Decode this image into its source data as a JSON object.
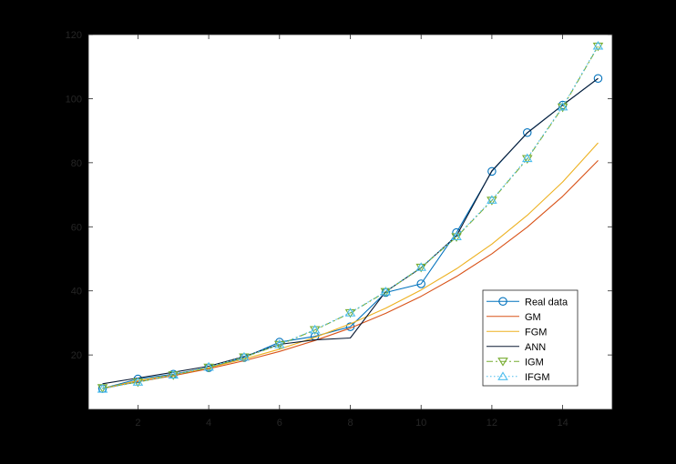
{
  "chart_data": {
    "type": "line",
    "title": "",
    "xlabel": "",
    "ylabel": "",
    "xlim": [
      0.6,
      15.4
    ],
    "ylim": [
      3,
      120
    ],
    "xticks": [
      2,
      4,
      6,
      8,
      10,
      12,
      14
    ],
    "yticks": [
      20,
      40,
      60,
      80,
      100,
      120
    ],
    "grid": false,
    "legend_position": "lower-right",
    "x": [
      1,
      2,
      3,
      4,
      5,
      6,
      7,
      8,
      9,
      10,
      11,
      12,
      13,
      14,
      15
    ],
    "series": [
      {
        "name": "Real data",
        "color": "#0072bd",
        "line": "solid",
        "marker": "circle",
        "values": [
          9.5,
          12.5,
          14,
          16,
          19.2,
          24,
          25.8,
          28.8,
          39.5,
          42.2,
          58.2,
          77.3,
          89.4,
          98,
          106.3
        ]
      },
      {
        "name": "GM",
        "color": "#d95319",
        "line": "solid",
        "marker": "none",
        "values": [
          9.5,
          11.7,
          13.5,
          15.7,
          18.2,
          21.1,
          24.5,
          28.4,
          33,
          38.3,
          44.5,
          51.6,
          59.9,
          69.5,
          80.7
        ]
      },
      {
        "name": "FGM",
        "color": "#edb120",
        "line": "solid",
        "marker": "none",
        "values": [
          9.5,
          12,
          13.8,
          16,
          18.7,
          21.8,
          25.5,
          29.7,
          34.6,
          40.3,
          46.9,
          54.6,
          63.6,
          74,
          86.2
        ]
      },
      {
        "name": "ANN",
        "color": "#0b1a33",
        "line": "solid",
        "marker": "none",
        "values": [
          11,
          12.8,
          14.6,
          16.5,
          19.5,
          23.3,
          24.7,
          25.3,
          39.8,
          47.2,
          57.2,
          77.5,
          89.3,
          98,
          106.3
        ]
      },
      {
        "name": "IGM",
        "color": "#77ac30",
        "line": "dashdot",
        "marker": "triangle-down",
        "values": [
          9.7,
          11.5,
          13.7,
          16.1,
          19.3,
          23.2,
          27.8,
          33.1,
          39.7,
          47.3,
          56.8,
          68.2,
          81.2,
          97.3,
          116.3
        ]
      },
      {
        "name": "IFGM",
        "color": "#4dbeee",
        "line": "dotted",
        "marker": "triangle-up",
        "values": [
          9.4,
          11.6,
          13.8,
          16.3,
          19.4,
          23.3,
          27.9,
          33.2,
          39.8,
          47.4,
          57,
          68.4,
          81.4,
          97.5,
          116.5
        ]
      }
    ]
  }
}
